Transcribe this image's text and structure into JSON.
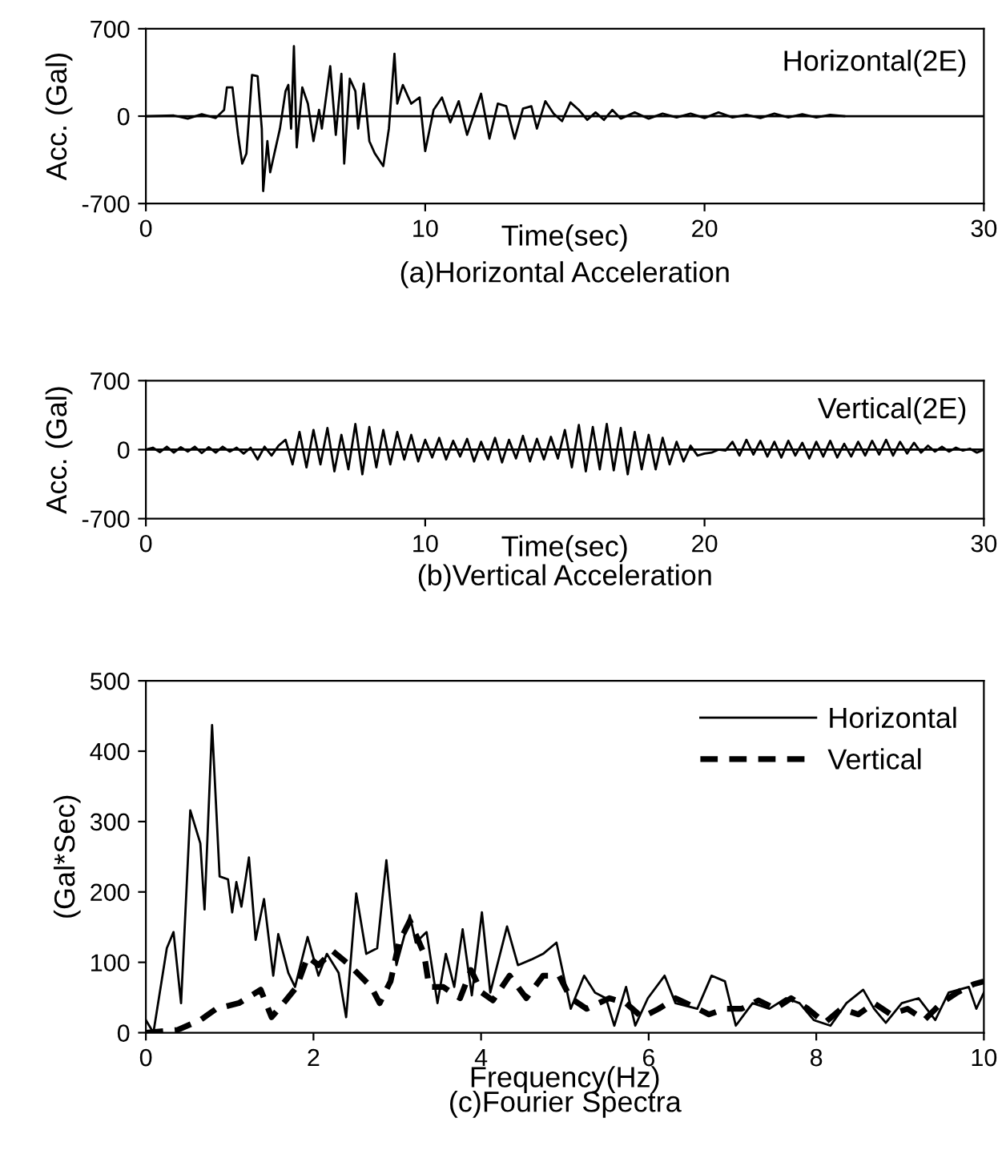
{
  "chart_data": [
    {
      "type": "line",
      "title": "(a)Horizontal Acceleration",
      "xlabel": "Time(sec)",
      "ylabel": "Acc. (Gal)",
      "annotations": [
        "Horizontal(2E)"
      ],
      "xlim": [
        0,
        30
      ],
      "ylim": [
        -700,
        700
      ],
      "xticks": [
        0,
        10,
        20,
        30
      ],
      "yticks": [
        -700,
        0,
        700
      ],
      "grid": false,
      "legend": false,
      "marker": "none",
      "line_style": "solid",
      "ref_lines": [
        {
          "axis": "y",
          "value": 0,
          "label": null,
          "color": "#000000"
        }
      ],
      "series": [
        {
          "color": "#000000",
          "x": [
            0,
            1.0,
            1.5,
            2.0,
            2.5,
            2.8,
            2.9,
            3.1,
            3.3,
            3.45,
            3.6,
            3.8,
            4.0,
            4.15,
            4.2,
            4.35,
            4.45,
            4.6,
            4.8,
            5.0,
            5.1,
            5.2,
            5.3,
            5.4,
            5.6,
            5.8,
            6.0,
            6.2,
            6.3,
            6.6,
            6.8,
            7.0,
            7.1,
            7.3,
            7.5,
            7.6,
            7.8,
            8.0,
            8.2,
            8.5,
            8.7,
            8.9,
            9.0,
            9.2,
            9.5,
            9.8,
            10.0,
            10.3,
            10.6,
            10.9,
            11.2,
            11.5,
            11.8,
            12.0,
            12.3,
            12.6,
            12.9,
            13.2,
            13.5,
            13.8,
            14.0,
            14.3,
            14.6,
            14.9,
            15.2,
            15.5,
            15.8,
            16.1,
            16.4,
            16.7,
            17.0,
            17.5,
            18.0,
            18.5,
            19.0,
            19.5,
            20.0,
            20.5,
            21.0,
            21.5,
            22.0,
            22.5,
            23.0,
            23.5,
            24.0,
            24.5,
            25.0
          ],
          "values": [
            0,
            5,
            -20,
            15,
            -15,
            50,
            230,
            230,
            -150,
            -380,
            -300,
            330,
            320,
            -100,
            -600,
            -200,
            -450,
            -300,
            -100,
            200,
            250,
            -100,
            560,
            -250,
            230,
            100,
            -200,
            50,
            -100,
            400,
            -150,
            340,
            -380,
            300,
            200,
            -100,
            260,
            -200,
            -300,
            -400,
            -100,
            500,
            100,
            250,
            100,
            150,
            -280,
            50,
            150,
            -50,
            120,
            -150,
            50,
            180,
            -180,
            100,
            80,
            -180,
            60,
            80,
            -100,
            120,
            20,
            -40,
            110,
            50,
            -30,
            30,
            -30,
            50,
            -20,
            30,
            -20,
            20,
            -10,
            20,
            -15,
            30,
            -10,
            10,
            -15,
            20,
            -10,
            15,
            -10,
            10,
            0
          ]
        }
      ]
    },
    {
      "type": "line",
      "title": "(b)Vertical Acceleration",
      "xlabel": "Time(sec)",
      "ylabel": "Acc. (Gal)",
      "annotations": [
        "Vertical(2E)"
      ],
      "xlim": [
        0,
        30
      ],
      "ylim": [
        -700,
        700
      ],
      "xticks": [
        0,
        10,
        20,
        30
      ],
      "yticks": [
        -700,
        0,
        700
      ],
      "grid": false,
      "legend": false,
      "marker": "none",
      "line_style": "solid",
      "ref_lines": [
        {
          "axis": "y",
          "value": 0,
          "label": null,
          "color": "#000000"
        }
      ],
      "series": [
        {
          "color": "#000000",
          "x": [
            0,
            0.25,
            0.5,
            0.75,
            1,
            1.25,
            1.5,
            1.75,
            2,
            2.25,
            2.5,
            2.75,
            3,
            3.25,
            3.5,
            3.75,
            4,
            4.25,
            4.5,
            4.75,
            5,
            5.25,
            5.5,
            5.75,
            6,
            6.25,
            6.5,
            6.75,
            7,
            7.25,
            7.5,
            7.75,
            8,
            8.25,
            8.5,
            8.75,
            9,
            9.25,
            9.5,
            9.75,
            10,
            10.25,
            10.5,
            10.75,
            11,
            11.25,
            11.5,
            11.75,
            12,
            12.25,
            12.5,
            12.75,
            13,
            13.25,
            13.5,
            13.75,
            14,
            14.25,
            14.5,
            14.75,
            15,
            15.25,
            15.5,
            15.75,
            16,
            16.25,
            16.5,
            16.75,
            17,
            17.25,
            17.5,
            17.75,
            18,
            18.25,
            18.5,
            18.75,
            19,
            19.25,
            19.5,
            19.75,
            20,
            20.25,
            20.5,
            20.75,
            21,
            21.25,
            21.5,
            21.75,
            22,
            22.25,
            22.5,
            22.75,
            23,
            23.25,
            23.5,
            23.75,
            24,
            24.25,
            24.5,
            24.75,
            25,
            25.25,
            25.5,
            25.75,
            26,
            26.25,
            26.5,
            26.75,
            27,
            27.25,
            27.5,
            27.75,
            28,
            28.25,
            28.5,
            28.75,
            29,
            29.25,
            29.5,
            29.75,
            30
          ],
          "values": [
            0,
            20,
            -25,
            30,
            -30,
            25,
            -20,
            30,
            -35,
            25,
            -30,
            30,
            -20,
            20,
            -40,
            20,
            -100,
            30,
            -60,
            40,
            100,
            -150,
            180,
            -180,
            200,
            -150,
            220,
            -220,
            150,
            -200,
            260,
            -250,
            230,
            -180,
            200,
            -150,
            180,
            -100,
            150,
            -120,
            100,
            -80,
            120,
            -100,
            90,
            -70,
            110,
            -120,
            80,
            -100,
            120,
            -130,
            100,
            -90,
            140,
            -120,
            110,
            -100,
            130,
            -90,
            200,
            -180,
            250,
            -220,
            230,
            -200,
            260,
            -210,
            220,
            -250,
            180,
            -200,
            150,
            -200,
            120,
            -150,
            80,
            -120,
            40,
            -60,
            -40,
            -30,
            0,
            -10,
            80,
            -60,
            100,
            -50,
            90,
            -70,
            80,
            -80,
            90,
            -60,
            70,
            -90,
            80,
            -70,
            90,
            -80,
            60,
            -70,
            80,
            -60,
            90,
            -50,
            100,
            -60,
            80,
            -40,
            70,
            -30,
            40,
            -20,
            30,
            -20,
            20,
            -10,
            10,
            -30,
            0
          ]
        }
      ]
    },
    {
      "type": "line",
      "title": "(c)Fourier Spectra",
      "xlabel": "Frequency(Hz)",
      "ylabel": "(Gal*Sec)",
      "xlim": [
        0,
        10
      ],
      "ylim": [
        0,
        500
      ],
      "xticks": [
        0,
        2,
        4,
        6,
        8,
        10
      ],
      "yticks": [
        0,
        100,
        200,
        300,
        400,
        500
      ],
      "grid": false,
      "legend": "top right",
      "marker": "none",
      "series": [
        {
          "name": "Horizontal",
          "color": "#000000",
          "line_style": "solid",
          "x": [
            0,
            0.09,
            0.25,
            0.33,
            0.42,
            0.53,
            0.65,
            0.7,
            0.79,
            0.88,
            0.98,
            1.03,
            1.08,
            1.14,
            1.23,
            1.31,
            1.41,
            1.52,
            1.58,
            1.7,
            1.78,
            1.93,
            2.06,
            2.16,
            2.3,
            2.39,
            2.51,
            2.63,
            2.76,
            2.87,
            2.99,
            3.15,
            3.22,
            3.35,
            3.48,
            3.58,
            3.68,
            3.78,
            3.89,
            4.01,
            4.11,
            4.31,
            4.44,
            4.6,
            4.74,
            4.9,
            5.07,
            5.23,
            5.36,
            5.49,
            5.59,
            5.73,
            5.84,
            5.99,
            6.19,
            6.32,
            6.45,
            6.58,
            6.75,
            6.91,
            7.04,
            7.24,
            7.44,
            7.64,
            7.8,
            7.97,
            8.17,
            8.36,
            8.56,
            8.69,
            8.83,
            9.02,
            9.22,
            9.42,
            9.58,
            9.82,
            9.91,
            10
          ],
          "values": [
            18,
            0,
            120,
            143,
            42,
            316,
            269,
            175,
            437,
            222,
            218,
            171,
            214,
            179,
            249,
            132,
            190,
            81,
            140,
            85,
            65,
            136,
            81,
            112,
            85,
            22,
            198,
            112,
            120,
            245,
            96,
            167,
            128,
            143,
            42,
            112,
            65,
            147,
            53,
            171,
            57,
            151,
            96,
            104,
            112,
            128,
            34,
            81,
            57,
            49,
            10,
            65,
            10,
            49,
            81,
            42,
            38,
            34,
            81,
            73,
            10,
            42,
            34,
            49,
            42,
            18,
            10,
            42,
            61,
            34,
            14,
            42,
            49,
            18,
            57,
            65,
            34,
            57
          ]
        },
        {
          "name": "Vertical",
          "color": "#000000",
          "line_style": "dashed",
          "x": [
            0,
            0.38,
            0.65,
            0.84,
            1.11,
            1.37,
            1.5,
            1.67,
            1.8,
            1.93,
            2.06,
            2.23,
            2.43,
            2.69,
            2.79,
            2.92,
            3.02,
            3.15,
            3.32,
            3.38,
            3.55,
            3.75,
            3.88,
            4.01,
            4.14,
            4.34,
            4.54,
            4.74,
            4.93,
            5.07,
            5.26,
            5.53,
            5.73,
            5.92,
            6.12,
            6.32,
            6.52,
            6.72,
            6.91,
            7.11,
            7.31,
            7.51,
            7.7,
            7.9,
            8.1,
            8.3,
            8.5,
            8.69,
            8.89,
            9.09,
            9.29,
            9.49,
            9.68,
            9.88,
            10
          ],
          "values": [
            0,
            4,
            18,
            34,
            42,
            61,
            22,
            46,
            65,
            108,
            96,
            116,
            96,
            65,
            42,
            73,
            128,
            159,
            112,
            65,
            65,
            49,
            89,
            57,
            46,
            81,
            49,
            81,
            81,
            49,
            34,
            49,
            42,
            22,
            34,
            49,
            38,
            26,
            34,
            34,
            46,
            34,
            49,
            34,
            14,
            34,
            26,
            42,
            26,
            34,
            18,
            42,
            57,
            69,
            73
          ]
        }
      ]
    }
  ]
}
